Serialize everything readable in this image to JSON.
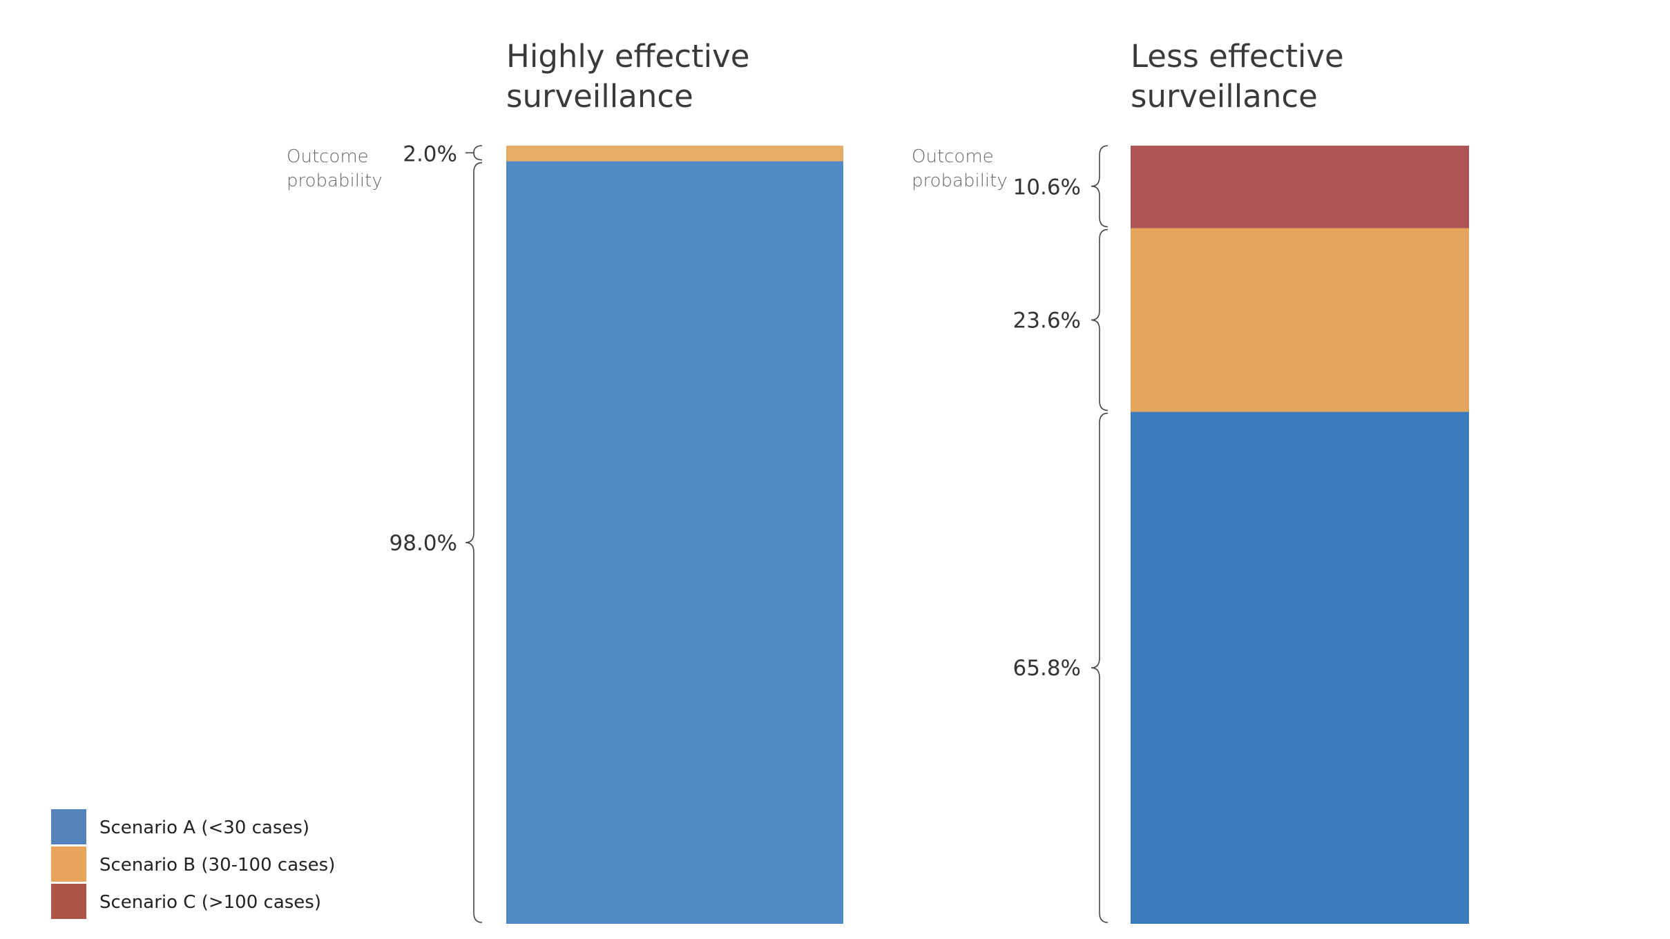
{
  "chart_data": {
    "type": "bar",
    "stacked": true,
    "axis_note": "Outcome\nprobability",
    "panels": [
      {
        "title": [
          "Highly effective",
          "surveillance"
        ],
        "segments": [
          {
            "series": "Scenario A (<30 cases)",
            "value": 98.0,
            "label": "98.0%"
          },
          {
            "series": "Scenario B (30-100 cases)",
            "value": 2.0,
            "label": "2.0%"
          }
        ]
      },
      {
        "title": [
          "Less effective",
          "surveillance"
        ],
        "segments": [
          {
            "series": "Scenario A (<30 cases)",
            "value": 65.8,
            "label": "65.8%"
          },
          {
            "series": "Scenario B (30-100 cases)",
            "value": 23.6,
            "label": "23.6%"
          },
          {
            "series": "Scenario C (>100 cases)",
            "value": 10.6,
            "label": "10.6%"
          }
        ]
      }
    ],
    "legend": {
      "placement": "bottom-left",
      "items": [
        {
          "name": "Scenario A (<30 cases)",
          "color": "#5584bd"
        },
        {
          "name": "Scenario B (30-100 cases)",
          "color": "#e6a55a"
        },
        {
          "name": "Scenario C (>100 cases)",
          "color": "#ae5548"
        }
      ]
    },
    "colors": {
      "panel1": {
        "Scenario A (<30 cases)": "#508bc4",
        "Scenario B (30-100 cases)": "#e6ad68"
      },
      "panel2": {
        "Scenario A (<30 cases)": "#3b7dbc",
        "Scenario B (30-100 cases)": "#e4a65c",
        "Scenario C (>100 cases)": "#ae5356"
      }
    }
  }
}
